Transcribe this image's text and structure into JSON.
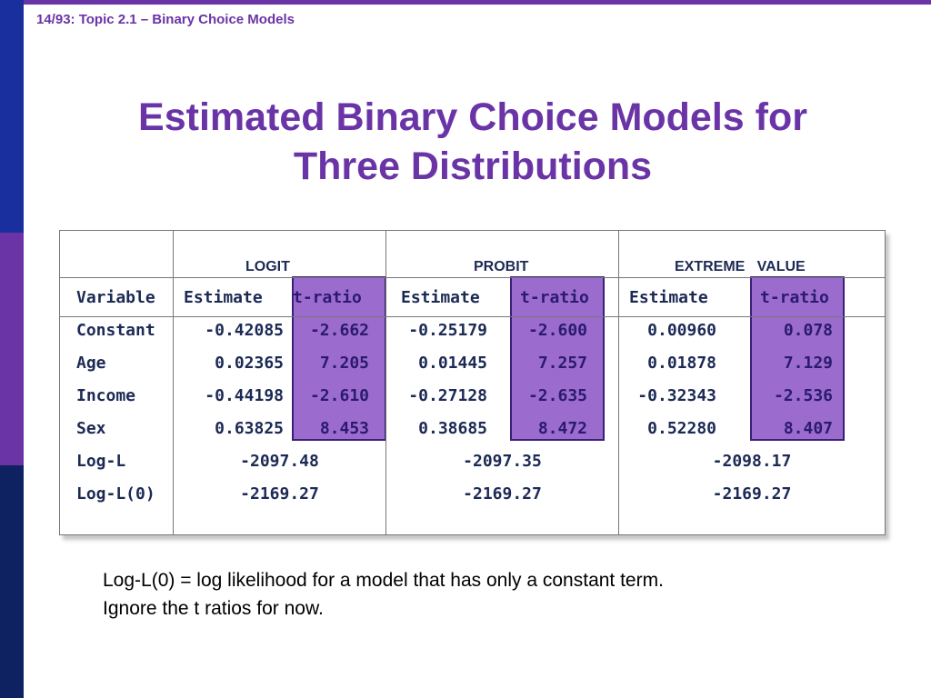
{
  "header": {
    "text": "14/93: Topic 2.1 – Binary Choice Models"
  },
  "title": {
    "line1": "Estimated Binary Choice Models for",
    "line2": "Three Distributions"
  },
  "table": {
    "groups": [
      "LOGIT",
      "PROBIT",
      "EXTREME   VALUE"
    ],
    "columns": [
      "Variable",
      "Estimate",
      "t-ratio",
      "Estimate",
      "t-ratio",
      "Estimate",
      "t-ratio"
    ],
    "rows": [
      {
        "variable": "Constant",
        "logit_est": "-0.42085",
        "logit_t": "-2.662",
        "probit_est": "-0.25179",
        "probit_t": "-2.600",
        "ev_est": "0.00960",
        "ev_t": "0.078"
      },
      {
        "variable": "Age",
        "logit_est": "0.02365",
        "logit_t": "7.205",
        "probit_est": "0.01445",
        "probit_t": "7.257",
        "ev_est": "0.01878",
        "ev_t": "7.129"
      },
      {
        "variable": "Income",
        "logit_est": "-0.44198",
        "logit_t": "-2.610",
        "probit_est": "-0.27128",
        "probit_t": "-2.635",
        "ev_est": "-0.32343",
        "ev_t": "-2.536"
      },
      {
        "variable": "Sex",
        "logit_est": "0.63825",
        "logit_t": "8.453",
        "probit_est": "0.38685",
        "probit_t": "8.472",
        "ev_est": "0.52280",
        "ev_t": "8.407"
      }
    ],
    "loglik": {
      "label": "Log-L",
      "logit": "-2097.48",
      "probit": "-2097.35",
      "ev": "-2098.17"
    },
    "loglik0": {
      "label": "Log-L(0)",
      "logit": "-2169.27",
      "probit": "-2169.27",
      "ev": "-2169.27"
    }
  },
  "notes": {
    "line1": "Log-L(0) = log likelihood for a model that has only a constant term.",
    "line2": "Ignore the t ratios for now."
  },
  "colors": {
    "accent": "#6a34a6",
    "navy": "#1a2f9e",
    "highlight": "#9b6ccd"
  }
}
